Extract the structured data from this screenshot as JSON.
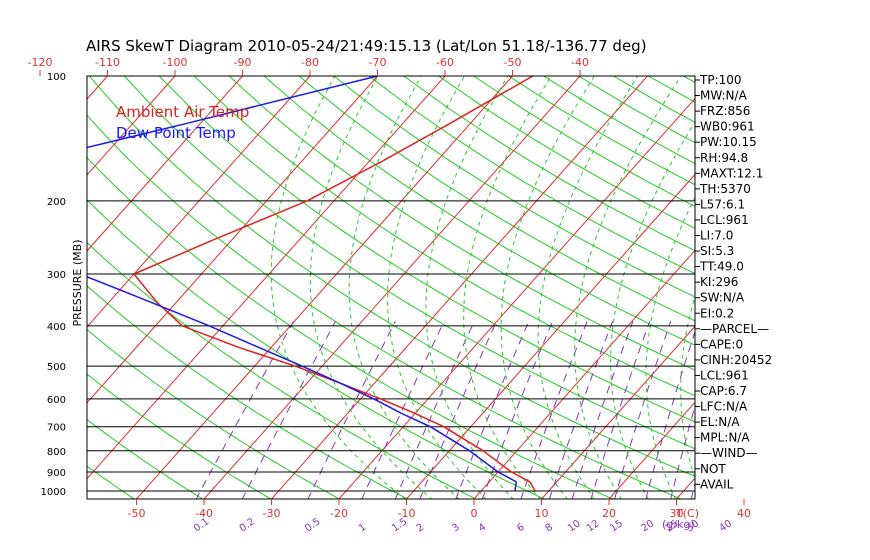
{
  "chart_data": {
    "type": "line",
    "title": "AIRS SkewT Diagram 2010-05-24/21:49:15.13 (Lat/Lon 51.18/-136.77 deg)",
    "ylabel": "PRESSURE (MB)",
    "y_scale": "log",
    "pressure_ticks": [
      100,
      200,
      300,
      400,
      500,
      600,
      700,
      800,
      900,
      1000
    ],
    "top_temp_ticks": [
      -120,
      -110,
      -100,
      -90,
      -80,
      -70,
      -60,
      -50,
      -40
    ],
    "bottom_temp_ticks": [
      -50,
      -40,
      -30,
      -20,
      -10,
      0,
      10,
      20,
      30,
      40
    ],
    "bottom_axis_unit": "T(C)",
    "mixing_ratio_labels": [
      "0.1",
      "0.2",
      "0.5",
      "1",
      "1.5",
      "2",
      "3",
      "4",
      "6",
      "8",
      "10",
      "12",
      "15",
      "20",
      "25",
      "30",
      "40"
    ],
    "mixing_ratio_unit": "(g/kg)",
    "legend": [
      {
        "label": "Ambient Air Temp",
        "color": "#dd2222"
      },
      {
        "label": "Dew Point Temp",
        "color": "#1a1aee"
      }
    ],
    "series": [
      {
        "name": "Ambient Air Temp",
        "color": "#dd2222",
        "points": [
          {
            "p": 100,
            "t": -47
          },
          {
            "p": 130,
            "t": -53
          },
          {
            "p": 160,
            "t": -58
          },
          {
            "p": 200,
            "t": -64
          },
          {
            "p": 250,
            "t": -73
          },
          {
            "p": 300,
            "t": -80
          },
          {
            "p": 350,
            "t": -73
          },
          {
            "p": 400,
            "t": -66
          },
          {
            "p": 450,
            "t": -55
          },
          {
            "p": 500,
            "t": -44
          },
          {
            "p": 550,
            "t": -35
          },
          {
            "p": 600,
            "t": -27
          },
          {
            "p": 650,
            "t": -20
          },
          {
            "p": 700,
            "t": -14
          },
          {
            "p": 800,
            "t": -5
          },
          {
            "p": 900,
            "t": 2
          },
          {
            "p": 950,
            "t": 6
          },
          {
            "p": 1000,
            "t": 8
          }
        ]
      },
      {
        "name": "Dew Point Temp",
        "color": "#1a1aee",
        "points": [
          {
            "p": 100,
            "t": -70
          },
          {
            "p": 130,
            "t": -92
          },
          {
            "p": 160,
            "t": -110
          },
          {
            "p": 200,
            "t": -120
          },
          {
            "p": 250,
            "t": -108
          },
          {
            "p": 300,
            "t": -88
          },
          {
            "p": 350,
            "t": -74
          },
          {
            "p": 400,
            "t": -62
          },
          {
            "p": 450,
            "t": -52
          },
          {
            "p": 500,
            "t": -43
          },
          {
            "p": 550,
            "t": -35
          },
          {
            "p": 600,
            "t": -28
          },
          {
            "p": 650,
            "t": -22
          },
          {
            "p": 700,
            "t": -16
          },
          {
            "p": 800,
            "t": -7
          },
          {
            "p": 900,
            "t": 0
          },
          {
            "p": 950,
            "t": 4
          },
          {
            "p": 1000,
            "t": 5
          }
        ]
      }
    ],
    "indices": [
      "TP:100",
      "MW:N/A",
      "FRZ:856",
      "WB0:961",
      "PW:10.15",
      "RH:94.8",
      "MAXT:12.1",
      "TH:5370",
      "L57:6.1",
      "LCL:961",
      "LI:7.0",
      "SI:5.3",
      "TT:49.0",
      "KI:296",
      "SW:N/A",
      "EI:0.2",
      "—PARCEL—",
      "CAPE:0",
      "CINH:20452",
      "LCL:961",
      "CAP:6.7",
      "LFC:N/A",
      "EL:N/A",
      "MPL:N/A",
      "—WIND—",
      "NOT",
      "AVAIL"
    ]
  }
}
